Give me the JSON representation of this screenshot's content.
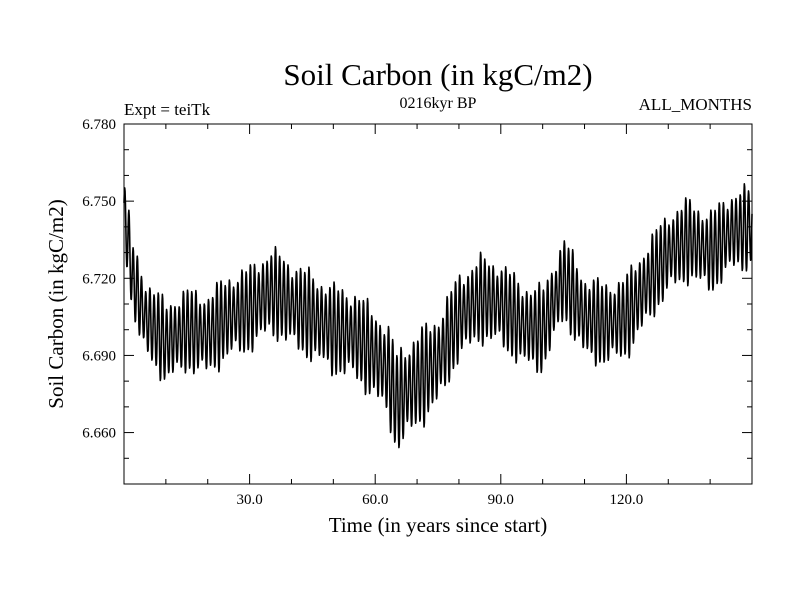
{
  "chart_data": {
    "type": "line",
    "title": "Soil Carbon (in kgC/m2)",
    "subtitle": "0216kyr BP",
    "left_note": "Expt = teiTk",
    "right_note": "ALL_MONTHS",
    "xlabel": "Time (in years since start)",
    "ylabel": "Soil Carbon (in kgC/m2)",
    "xlim": [
      0,
      150
    ],
    "ylim": [
      6.64,
      6.78
    ],
    "x_ticks": [
      30,
      60,
      90,
      120
    ],
    "x_tick_labels": [
      "30.0",
      "60.0",
      "90.0",
      "120.0"
    ],
    "y_ticks": [
      6.66,
      6.69,
      6.72,
      6.75,
      6.78
    ],
    "y_tick_labels": [
      "6.660",
      "6.690",
      "6.720",
      "6.750",
      "6.780"
    ],
    "samples_per_year": 12,
    "series": [
      {
        "name": "Soil Carbon",
        "color": "#000000",
        "trend_x": [
          0,
          1,
          2,
          5,
          10,
          15,
          20,
          25,
          30,
          35,
          40,
          45,
          50,
          55,
          60,
          63,
          65,
          70,
          75,
          80,
          85,
          90,
          95,
          100,
          105,
          110,
          115,
          120,
          125,
          130,
          135,
          140,
          145,
          150
        ],
        "trend_y": [
          6.745,
          6.735,
          6.72,
          6.705,
          6.695,
          6.7,
          6.698,
          6.705,
          6.708,
          6.715,
          6.71,
          6.705,
          6.7,
          6.698,
          6.69,
          6.684,
          6.672,
          6.68,
          6.688,
          6.705,
          6.712,
          6.71,
          6.702,
          6.7,
          6.72,
          6.705,
          6.702,
          6.705,
          6.718,
          6.73,
          6.735,
          6.73,
          6.738,
          6.74
        ],
        "amplitude_years": [
          0,
          5,
          60,
          66,
          80,
          150
        ],
        "amplitude": [
          0.013,
          0.016,
          0.018,
          0.02,
          0.017,
          0.016
        ]
      }
    ]
  }
}
